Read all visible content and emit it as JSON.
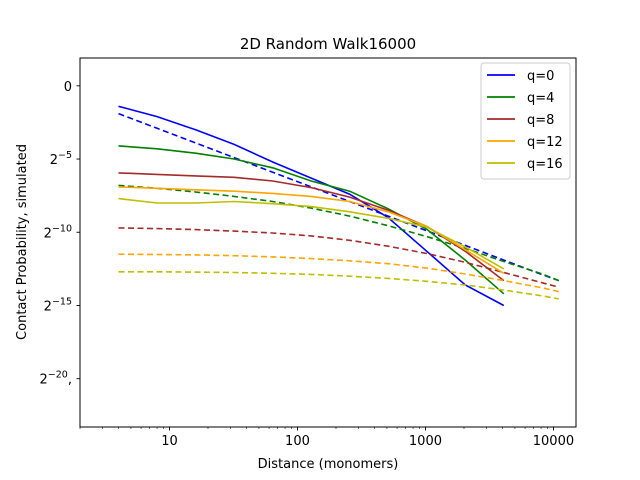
{
  "chart_data": {
    "type": "line",
    "title": "2D Random Walk16000",
    "xlabel": "Distance (monomers)",
    "ylabel": "Contact Probability, simulated",
    "xscale": "log10",
    "yscale": "log2",
    "xlim": [
      2,
      15000
    ],
    "ylim_log2": [
      -23.3,
      1.9
    ],
    "xticks": [
      {
        "value": 10,
        "label": "10"
      },
      {
        "value": 100,
        "label": "100"
      },
      {
        "value": 1000,
        "label": "1000"
      },
      {
        "value": 10000,
        "label": "10000"
      }
    ],
    "yticks": [
      {
        "exp": 0,
        "base": "0",
        "sup": ""
      },
      {
        "exp": -5,
        "base": "2",
        "sup": "−5"
      },
      {
        "exp": -10,
        "base": "2",
        "sup": "−10"
      },
      {
        "exp": -15,
        "base": "2",
        "sup": "−15"
      },
      {
        "exp": -20,
        "base": "2",
        "sup": "−20",
        "suffix": ","
      }
    ],
    "grid": false,
    "legend_position": "top-right",
    "series": [
      {
        "name": "q=0",
        "color": "#0000ff",
        "style": "solid",
        "points": [
          [
            4,
            -1.4
          ],
          [
            8,
            -2.1
          ],
          [
            16,
            -3.0
          ],
          [
            32,
            -4.0
          ],
          [
            64,
            -5.2
          ],
          [
            128,
            -6.3
          ],
          [
            256,
            -7.4
          ],
          [
            512,
            -9.0
          ],
          [
            1024,
            -11.3
          ],
          [
            2048,
            -13.6
          ],
          [
            4096,
            -15.0
          ]
        ]
      },
      {
        "name": "q=0",
        "color": "#0000ff",
        "style": "dashed",
        "legend": false,
        "points": [
          [
            4,
            -1.9
          ],
          [
            8,
            -2.9
          ],
          [
            16,
            -3.9
          ],
          [
            32,
            -4.9
          ],
          [
            64,
            -5.9
          ],
          [
            128,
            -6.9
          ],
          [
            256,
            -7.9
          ],
          [
            512,
            -8.9
          ],
          [
            1024,
            -9.9
          ],
          [
            2048,
            -10.9
          ],
          [
            4096,
            -11.9
          ],
          [
            8192,
            -12.9
          ],
          [
            11000,
            -13.3
          ]
        ]
      },
      {
        "name": "q=4",
        "color": "#008000",
        "style": "solid",
        "points": [
          [
            4,
            -4.1
          ],
          [
            8,
            -4.3
          ],
          [
            16,
            -4.6
          ],
          [
            32,
            -5.0
          ],
          [
            64,
            -5.6
          ],
          [
            128,
            -6.5
          ],
          [
            256,
            -7.2
          ],
          [
            512,
            -8.4
          ],
          [
            1024,
            -9.8
          ],
          [
            2048,
            -11.9
          ],
          [
            4096,
            -14.2
          ]
        ]
      },
      {
        "name": "q=4",
        "color": "#008000",
        "style": "dashed",
        "legend": false,
        "points": [
          [
            4,
            -6.8
          ],
          [
            8,
            -7.0
          ],
          [
            16,
            -7.25
          ],
          [
            32,
            -7.55
          ],
          [
            64,
            -7.9
          ],
          [
            128,
            -8.35
          ],
          [
            256,
            -8.9
          ],
          [
            512,
            -9.55
          ],
          [
            1024,
            -10.3
          ],
          [
            2048,
            -11.1
          ],
          [
            4096,
            -12.0
          ],
          [
            8192,
            -12.85
          ],
          [
            11000,
            -13.3
          ]
        ]
      },
      {
        "name": "q=8",
        "color": "#a52a2a",
        "style": "solid",
        "points": [
          [
            4,
            -5.95
          ],
          [
            8,
            -6.05
          ],
          [
            16,
            -6.15
          ],
          [
            32,
            -6.25
          ],
          [
            64,
            -6.5
          ],
          [
            128,
            -6.95
          ],
          [
            256,
            -7.6
          ],
          [
            512,
            -8.5
          ],
          [
            1024,
            -9.6
          ],
          [
            2048,
            -11.3
          ],
          [
            4096,
            -13.3
          ]
        ]
      },
      {
        "name": "q=8",
        "color": "#a52a2a",
        "style": "dashed",
        "legend": false,
        "points": [
          [
            4,
            -9.7
          ],
          [
            8,
            -9.75
          ],
          [
            16,
            -9.82
          ],
          [
            32,
            -9.92
          ],
          [
            64,
            -10.05
          ],
          [
            128,
            -10.25
          ],
          [
            256,
            -10.55
          ],
          [
            512,
            -10.95
          ],
          [
            1024,
            -11.45
          ],
          [
            2048,
            -12.05
          ],
          [
            4096,
            -12.75
          ],
          [
            8192,
            -13.45
          ],
          [
            11000,
            -13.75
          ]
        ]
      },
      {
        "name": "q=12",
        "color": "#ffa500",
        "style": "solid",
        "points": [
          [
            4,
            -6.9
          ],
          [
            8,
            -7.0
          ],
          [
            16,
            -7.1
          ],
          [
            32,
            -7.2
          ],
          [
            64,
            -7.35
          ],
          [
            128,
            -7.55
          ],
          [
            256,
            -7.9
          ],
          [
            512,
            -8.6
          ],
          [
            1024,
            -9.6
          ],
          [
            2048,
            -11.2
          ],
          [
            4096,
            -12.8
          ]
        ]
      },
      {
        "name": "q=12",
        "color": "#ffa500",
        "style": "dashed",
        "legend": false,
        "points": [
          [
            4,
            -11.5
          ],
          [
            8,
            -11.52
          ],
          [
            16,
            -11.55
          ],
          [
            32,
            -11.6
          ],
          [
            64,
            -11.68
          ],
          [
            128,
            -11.8
          ],
          [
            256,
            -11.95
          ],
          [
            512,
            -12.15
          ],
          [
            1024,
            -12.45
          ],
          [
            2048,
            -12.85
          ],
          [
            4096,
            -13.3
          ],
          [
            8192,
            -13.8
          ],
          [
            11000,
            -14.05
          ]
        ]
      },
      {
        "name": "q=16",
        "color": "#bfbf00",
        "style": "solid",
        "points": [
          [
            4,
            -7.7
          ],
          [
            8,
            -8.0
          ],
          [
            16,
            -8.0
          ],
          [
            32,
            -7.9
          ],
          [
            64,
            -8.05
          ],
          [
            128,
            -8.25
          ],
          [
            256,
            -8.6
          ],
          [
            512,
            -9.05
          ],
          [
            1024,
            -9.65
          ],
          [
            2048,
            -11.0
          ],
          [
            4096,
            -12.5
          ]
        ]
      },
      {
        "name": "q=16",
        "color": "#bfbf00",
        "style": "dashed",
        "legend": false,
        "points": [
          [
            4,
            -12.7
          ],
          [
            8,
            -12.7
          ],
          [
            16,
            -12.72
          ],
          [
            32,
            -12.75
          ],
          [
            64,
            -12.8
          ],
          [
            128,
            -12.88
          ],
          [
            256,
            -13.0
          ],
          [
            512,
            -13.15
          ],
          [
            1024,
            -13.35
          ],
          [
            2048,
            -13.6
          ],
          [
            4096,
            -13.95
          ],
          [
            8192,
            -14.35
          ],
          [
            11000,
            -14.55
          ]
        ]
      }
    ]
  }
}
